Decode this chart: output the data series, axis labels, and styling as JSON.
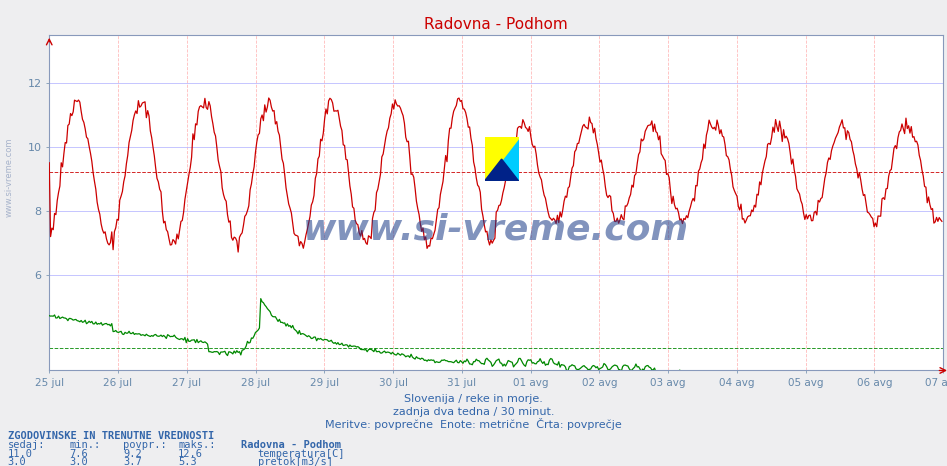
{
  "title": "Radovna - Podhom",
  "subtitle1": "Slovenija / reke in morje.",
  "subtitle2": "zadnja dva tedna / 30 minut.",
  "subtitle3": "Meritve: povprečne  Enote: metrične  Črta: povprečje",
  "xlabel_dates": [
    "25 jul",
    "26 jul",
    "27 jul",
    "28 jul",
    "29 jul",
    "30 jul",
    "31 jul",
    "01 avg",
    "02 avg",
    "03 avg",
    "04 avg",
    "05 avg",
    "06 avg",
    "07 avg"
  ],
  "yticks": [
    6,
    8,
    10,
    12
  ],
  "temp_avg": 9.2,
  "flow_avg": 3.7,
  "ylim_min": 3.0,
  "ylim_max": 13.5,
  "bg_color": "#eeeef0",
  "plot_bg": "#ffffff",
  "grid_color_v": "#ffcccc",
  "grid_color_h": "#ccccff",
  "temp_color": "#cc0000",
  "flow_color": "#008800",
  "title_color": "#cc0000",
  "label_color": "#6688aa",
  "text_color": "#3366aa",
  "watermark": "www.si-vreme.com",
  "watermark_color": "#1a3a88",
  "stats_header": "ZGODOVINSKE IN TRENUTNE VREDNOSTI",
  "stats_col1": "sedaj:",
  "stats_col2": "min.:",
  "stats_col3": "povpr.:",
  "stats_col4": "maks.:",
  "stats_station": "Radovna - Podhom",
  "stats_temp_label": "temperatura[C]",
  "stats_flow_label": "pretok[m3/s]",
  "stats_temp_values": [
    11.0,
    7.6,
    9.2,
    12.6
  ],
  "stats_flow_values": [
    3.0,
    3.0,
    3.7,
    5.3
  ],
  "n_points": 672,
  "left_watermark": "www.si-vreme.com"
}
